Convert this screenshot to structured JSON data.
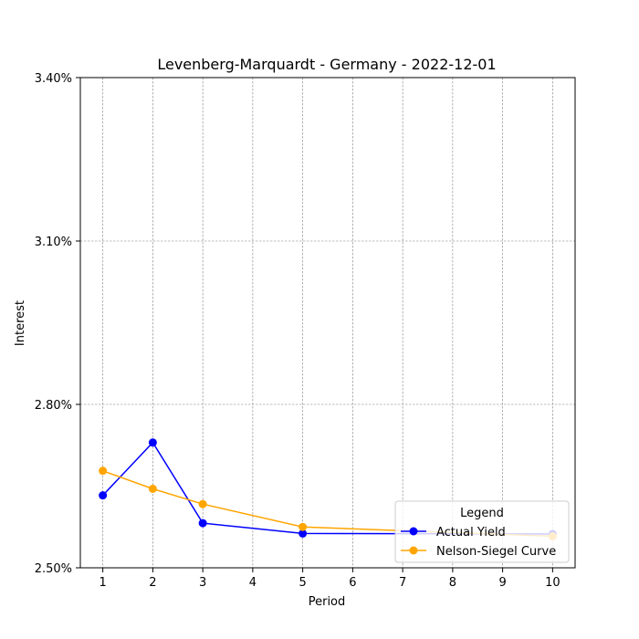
{
  "chart_data": {
    "type": "line",
    "title": "Levenberg-Marquardt - Germany - 2022-12-01",
    "xlabel": "Period",
    "ylabel": "Interest",
    "x_ticks": [
      1,
      2,
      3,
      4,
      5,
      6,
      7,
      8,
      9,
      10
    ],
    "x_tick_labels": [
      "1",
      "2",
      "3",
      "4",
      "5",
      "6",
      "7",
      "8",
      "9",
      "10"
    ],
    "y_ticks": [
      2.5,
      2.8,
      3.1,
      3.4
    ],
    "y_tick_labels": [
      "2.50%",
      "2.80%",
      "3.10%",
      "3.40%"
    ],
    "xlim": [
      0.55,
      10.45
    ],
    "ylim": [
      2.5,
      3.4
    ],
    "grid": true,
    "legend": {
      "title": "Legend",
      "placement": "lower-right"
    },
    "series": [
      {
        "name": "Actual Yield",
        "color": "#0000ff",
        "marker": "circle",
        "x": [
          1,
          2,
          3,
          5,
          10
        ],
        "y": [
          2.633,
          2.73,
          2.582,
          2.563,
          2.562
        ]
      },
      {
        "name": "Nelson-Siegel Curve",
        "color": "#ffa500",
        "marker": "circle",
        "x": [
          1,
          2,
          3,
          5,
          10
        ],
        "y": [
          2.678,
          2.645,
          2.617,
          2.575,
          2.558
        ]
      }
    ]
  }
}
